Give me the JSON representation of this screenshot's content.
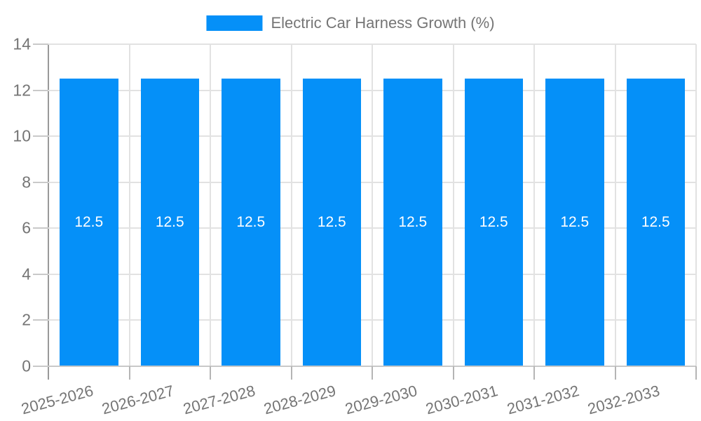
{
  "chart_data": {
    "type": "bar",
    "title": "Electric Car Harness Growth (%)",
    "legend": {
      "position": "top",
      "label": "Electric Car Harness Growth (%)"
    },
    "categories": [
      "2025-2026",
      "2026-2027",
      "2027-2028",
      "2028-2029",
      "2029-2030",
      "2030-2031",
      "2031-2032",
      "2032-2033"
    ],
    "series": [
      {
        "name": "Electric Car Harness Growth (%)",
        "values": [
          12.5,
          12.5,
          12.5,
          12.5,
          12.5,
          12.5,
          12.5,
          12.5
        ]
      }
    ],
    "bar_value_labels": [
      "12.5",
      "12.5",
      "12.5",
      "12.5",
      "12.5",
      "12.5",
      "12.5",
      "12.5"
    ],
    "xlabel": "",
    "ylabel": "",
    "ylim": [
      0,
      14
    ],
    "yticks": [
      0,
      2,
      4,
      6,
      8,
      10,
      12,
      14
    ],
    "x_tick_rotation_deg": -15,
    "grid": true,
    "colors": {
      "bar": "#0590F8",
      "axis_text": "#757575",
      "grid_line": "#e2e2e2",
      "axis_line": "#999999",
      "tick_line": "#c9c9c9",
      "bar_label_text": "#ffffff",
      "background": "#ffffff"
    }
  }
}
